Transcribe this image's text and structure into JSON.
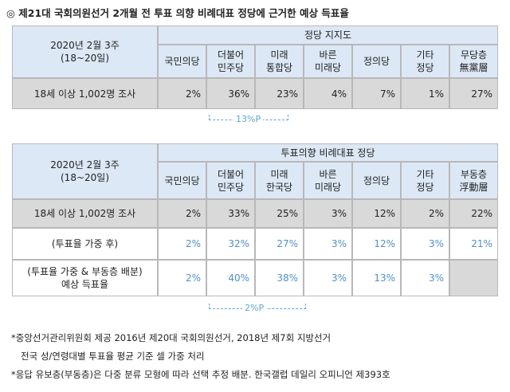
{
  "title": "◎ 제21대 국회의원선거 2개월 전 투표 의향 비례대표 정당에 근거한 예상 득표율",
  "tables": [
    {
      "period": [
        "2020년 2월 3주",
        "(18~20일)"
      ],
      "group": "정당 지지도",
      "columns": [
        [
          "국민의당"
        ],
        [
          "더불어",
          "민주당"
        ],
        [
          "미래",
          "통합당"
        ],
        [
          "바른",
          "미래당"
        ],
        [
          "정의당"
        ],
        [
          "기타",
          "정당"
        ],
        [
          "무당층",
          "無黨層"
        ]
      ],
      "rows": [
        {
          "label": [
            "18세 이상 1,002명 조사"
          ],
          "values": [
            "2%",
            "36%",
            "23%",
            "4%",
            "7%",
            "1%",
            "27%"
          ]
        }
      ],
      "annotation": "13%P"
    },
    {
      "period": [
        "2020년 2월 3주",
        "(18~20일)"
      ],
      "group": "투표의향 비례대표 정당",
      "columns": [
        [
          "국민의당"
        ],
        [
          "더불어",
          "민주당"
        ],
        [
          "미래",
          "한국당"
        ],
        [
          "바른",
          "미래당"
        ],
        [
          "정의당"
        ],
        [
          "기타",
          "정당"
        ],
        [
          "부동층",
          "浮動層"
        ]
      ],
      "rows": [
        {
          "label": [
            "18세 이상 1,002명 조사"
          ],
          "values": [
            "2%",
            "33%",
            "25%",
            "3%",
            "12%",
            "2%",
            "22%"
          ]
        },
        {
          "label": [
            "(투표율 가중 후)"
          ],
          "values": [
            "2%",
            "32%",
            "27%",
            "3%",
            "12%",
            "3%",
            "21%"
          ]
        },
        {
          "label": [
            "(투표율 가중 & 부동층 배분)",
            "예상 득표율"
          ],
          "values": [
            "2%",
            "40%",
            "38%",
            "3%",
            "13%",
            "3%",
            null
          ]
        }
      ],
      "annotation": "2%P"
    }
  ],
  "footnotes": [
    "*중앙선거관리위원회 제공 2016년 제20대 국회의원선거, 2018년 제7회 지방선거",
    "전국 성/연령대별 투표율 평균 기준 셀 가중 처리",
    "*응답 유보층(부동층)은 다중 분류 모형에 따라 선택 추정 배분. 한국갤럽 데일리 오피니언 제393호"
  ]
}
